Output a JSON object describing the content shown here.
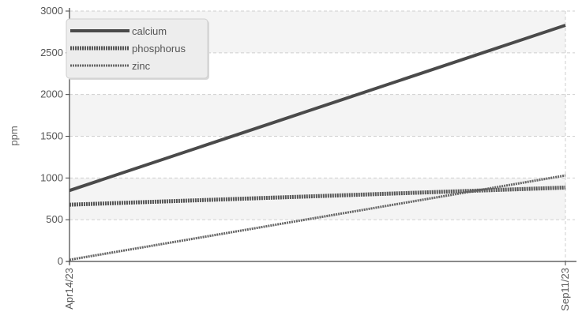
{
  "chart_data": {
    "type": "line",
    "title": "",
    "xlabel": "",
    "ylabel": "ppm",
    "x": [
      "Apr14/23",
      "Sep11/23"
    ],
    "ylim": [
      0,
      3000
    ],
    "yticks": [
      0,
      500,
      1000,
      1500,
      2000,
      2500,
      3000
    ],
    "grid": true,
    "legend_position": "top-left",
    "series": [
      {
        "name": "calcium",
        "values": [
          850,
          2830
        ],
        "color": "#4a4a4a",
        "style": "solid"
      },
      {
        "name": "phosphorus",
        "values": [
          680,
          885
        ],
        "color": "#555555",
        "style": "dotted"
      },
      {
        "name": "zinc",
        "values": [
          20,
          1030
        ],
        "color": "#666666",
        "style": "fine-dotted"
      }
    ]
  }
}
